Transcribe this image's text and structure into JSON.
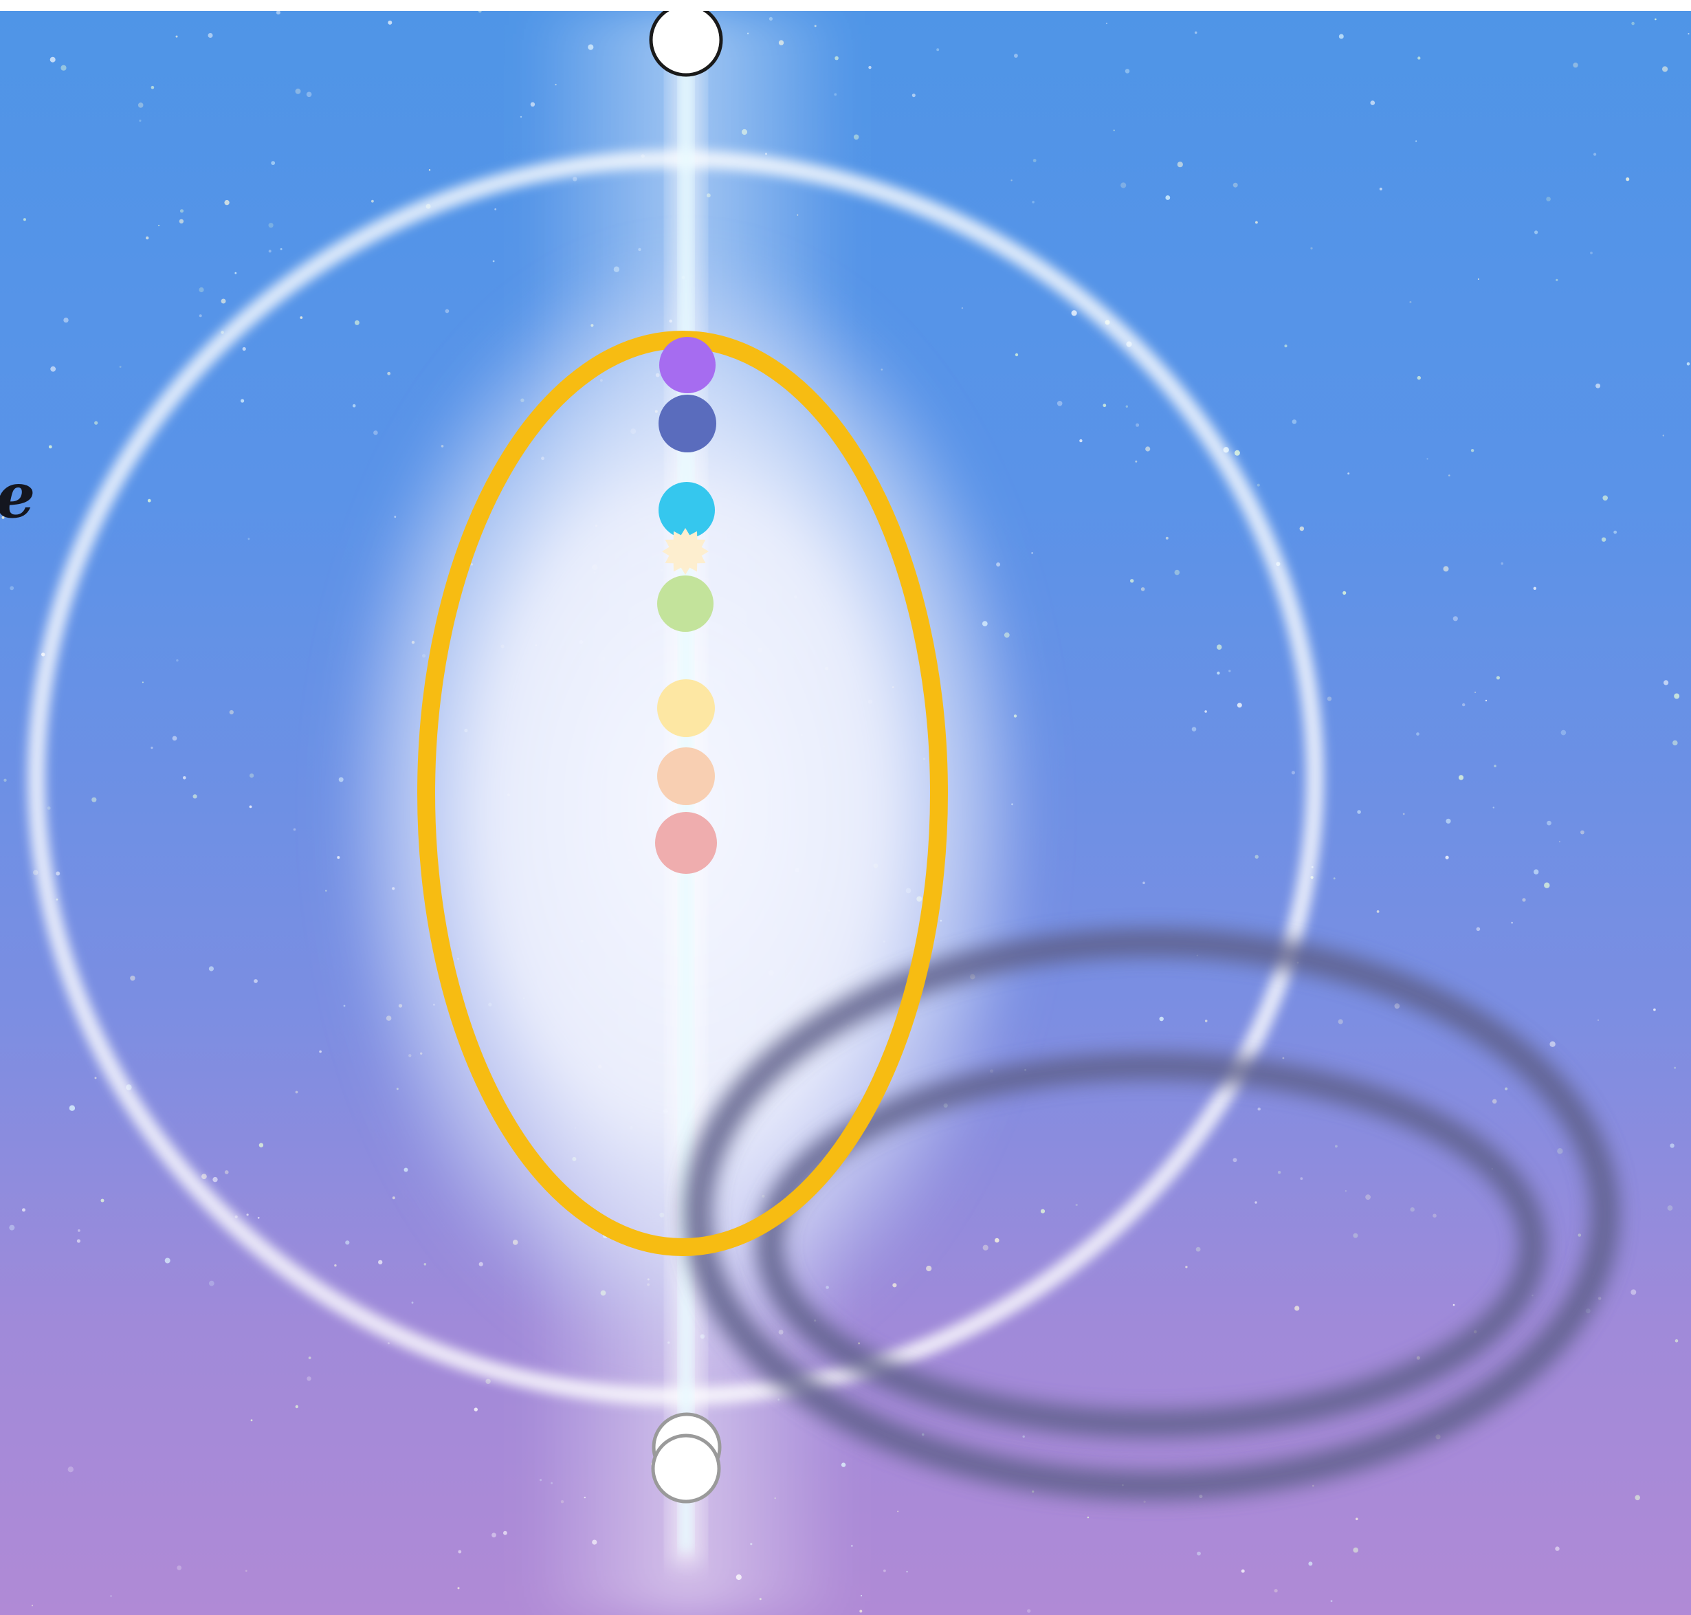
{
  "partial_text": "e",
  "colors": {
    "background_top": "#4f95e7",
    "background_bottom": "#b08ad6",
    "outer_ring": "#ffffff",
    "light_beam": "#e7fbff",
    "golden_oval": "#f7bc12",
    "shadow_rings": "#5d5f89",
    "end_points": "#ffffff"
  },
  "energy_points": [
    {
      "name": "violet",
      "color": "#a66cf0",
      "shape": "circle"
    },
    {
      "name": "indigo",
      "color": "#5a6cbd",
      "shape": "circle"
    },
    {
      "name": "cyan",
      "color": "#35c7ee",
      "shape": "circle"
    },
    {
      "name": "cream-star",
      "color": "#fdeecf",
      "shape": "star"
    },
    {
      "name": "light-green",
      "color": "#c3e39b",
      "shape": "circle"
    },
    {
      "name": "pale-yellow",
      "color": "#fde7a3",
      "shape": "circle"
    },
    {
      "name": "peach",
      "color": "#f8cfb2",
      "shape": "circle"
    },
    {
      "name": "salmon",
      "color": "#efadae",
      "shape": "circle"
    }
  ]
}
